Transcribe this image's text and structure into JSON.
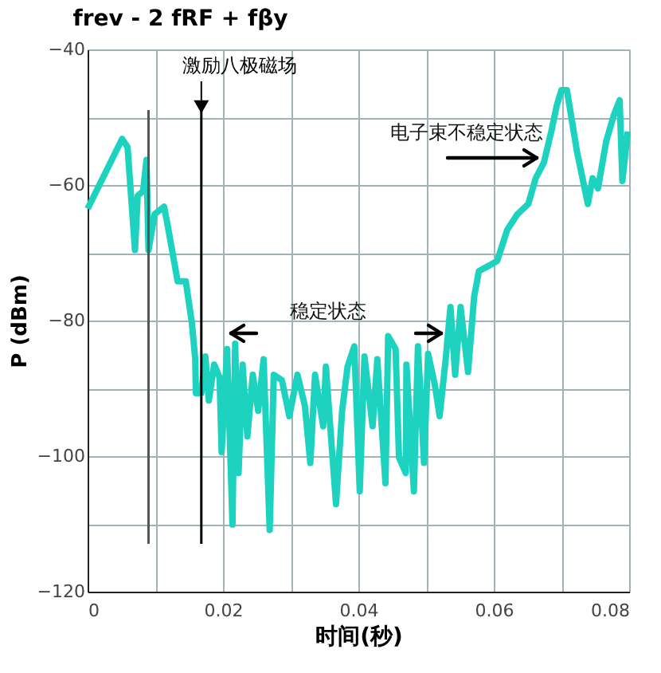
{
  "chart_data": {
    "type": "line",
    "title": "frev - 2 fRF + fβy",
    "xlabel": "时间(秒)",
    "ylabel": "P (dBm)",
    "x": [
      0,
      0.0051,
      0.0059,
      0.007,
      0.0074,
      0.0082,
      0.0087,
      0.009,
      0.0099,
      0.0113,
      0.0118,
      0.0133,
      0.0145,
      0.0154,
      0.0159,
      0.016,
      0.0168,
      0.0174,
      0.0179,
      0.0187,
      0.0195,
      0.0198,
      0.0206,
      0.0214,
      0.0218,
      0.0223,
      0.0229,
      0.0236,
      0.0244,
      0.0252,
      0.026,
      0.0269,
      0.0275,
      0.0287,
      0.0298,
      0.031,
      0.0321,
      0.0329,
      0.0336,
      0.0348,
      0.0352,
      0.0359,
      0.0367,
      0.0376,
      0.0384,
      0.0394,
      0.0402,
      0.0409,
      0.0421,
      0.0428,
      0.044,
      0.0444,
      0.0455,
      0.046,
      0.047,
      0.0471,
      0.0482,
      0.0488,
      0.0497,
      0.0503,
      0.0513,
      0.052,
      0.0529,
      0.0536,
      0.0543,
      0.0551,
      0.0562,
      0.0571,
      0.0578,
      0.0593,
      0.0605,
      0.062,
      0.0635,
      0.0651,
      0.0662,
      0.0674,
      0.0685,
      0.0693,
      0.07,
      0.0708,
      0.0723,
      0.0739,
      0.0746,
      0.0754,
      0.0766,
      0.0777,
      0.0786,
      0.079,
      0.0798
    ],
    "series": [
      {
        "color": "#1dd3bf",
        "values": [
          -63.5,
          -53.2,
          -54.4,
          -69.6,
          -61.6,
          -60.9,
          -56.3,
          -69.6,
          -64.3,
          -63.2,
          -65.8,
          -74.2,
          -74.2,
          -80.3,
          -85.7,
          -90.7,
          -90.7,
          -85.3,
          -91.8,
          -86.5,
          -88.4,
          -99.4,
          -84.2,
          -110.1,
          -83.4,
          -102.5,
          -86.5,
          -97.1,
          -88,
          -93.3,
          -85.7,
          -110.9,
          -88,
          -88.8,
          -94.1,
          -88,
          -92.6,
          -101,
          -88,
          -95.6,
          -86.8,
          -96.4,
          -107.1,
          -93.3,
          -86.8,
          -83.8,
          -105.2,
          -85.3,
          -95.6,
          -85.7,
          -104,
          -82.3,
          -84.2,
          -100.2,
          -102.5,
          -86.5,
          -105.2,
          -83.8,
          -101,
          -84.9,
          -89.5,
          -94.1,
          -85.7,
          -78,
          -88,
          -78,
          -87.6,
          -76.5,
          -72.7,
          -71.9,
          -71.2,
          -66.6,
          -64.3,
          -62.8,
          -59,
          -56.7,
          -52.1,
          -48.3,
          -46,
          -46,
          -55.1,
          -62.8,
          -59,
          -60.5,
          -53.6,
          -49.8,
          -47.5,
          -59.4,
          -52.1
        ]
      }
    ],
    "xlim": [
      0,
      0.08
    ],
    "ylim": [
      -120,
      -40
    ],
    "xticks": [
      0,
      {
        "value": 0.01,
        "label": null
      },
      0.02,
      {
        "value": 0.03,
        "label": null
      },
      0.04,
      {
        "value": 0.05,
        "label": null
      },
      0.06,
      {
        "value": 0.07,
        "label": null
      },
      0.08
    ],
    "yticks": [
      -120,
      {
        "value": -110,
        "label": null
      },
      -100,
      {
        "value": -90,
        "label": null
      },
      -80,
      {
        "value": -70,
        "label": null
      },
      -60,
      {
        "value": -50,
        "label": null
      },
      -40
    ],
    "grid": true,
    "marker": "none",
    "line_style": "solid",
    "ref_lines": [
      {
        "axis": "x",
        "value": 0.009,
        "color": "#555555"
      },
      {
        "axis": "x",
        "value": 0.0168,
        "label": "激励八极磁场",
        "color": "#000000"
      }
    ],
    "annotations": [
      "稳定状态",
      "电子束不稳定状态"
    ]
  }
}
